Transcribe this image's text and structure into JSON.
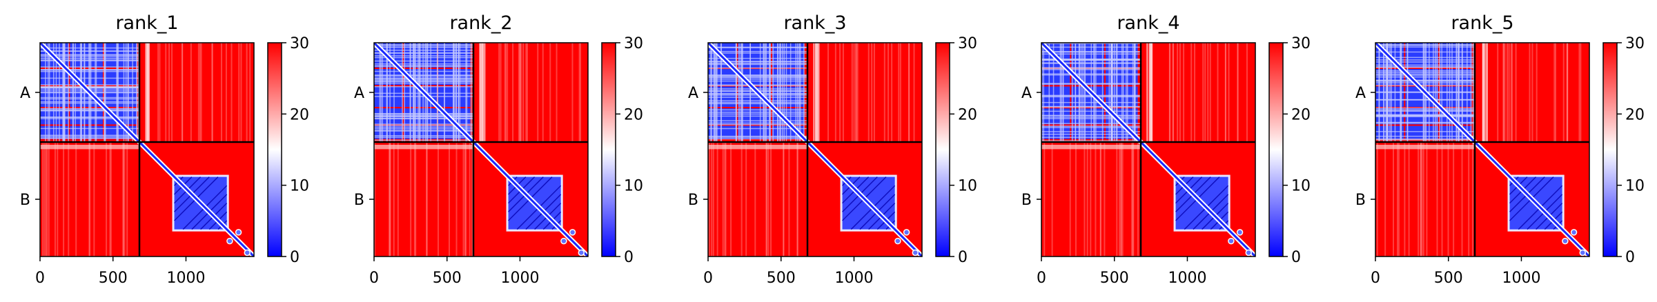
{
  "chart_data": {
    "type": "heatmap",
    "description_colormap": [
      "#0000ff",
      "#ffffff",
      "#ff0000"
    ],
    "clim": [
      0,
      30
    ],
    "colorbar_ticks": [
      0,
      10,
      20,
      30
    ],
    "x_ticks": [
      0,
      500,
      1000
    ],
    "xlim": [
      0,
      1466
    ],
    "chain_boundary": 681,
    "chain_labels": [
      "A",
      "B"
    ],
    "panels": [
      {
        "title": "rank_1"
      },
      {
        "title": "rank_2"
      },
      {
        "title": "rank_3"
      },
      {
        "title": "rank_4"
      },
      {
        "title": "rank_5"
      }
    ]
  }
}
